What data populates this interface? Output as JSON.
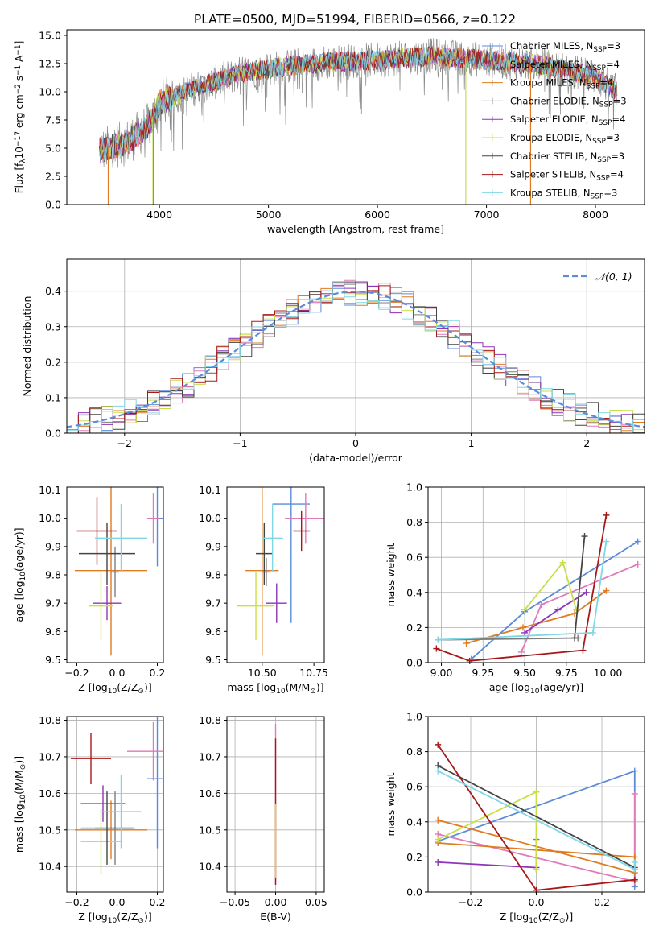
{
  "title": "PLATE=0500, MJD=51994, FIBERID=0566, z=0.122",
  "colors": {
    "chabrier_miles": "#5b8bd9",
    "salpeter_miles": "#e07ab8",
    "kroupa_miles": "#e07b22",
    "chabrier_elodie": "#7d7d7d",
    "salpeter_elodie": "#8e35b8",
    "kroupa_elodie": "#c7e04a",
    "chabrier_stelib": "#444444",
    "salpeter_stelib": "#a81818",
    "kroupa_stelib": "#7fd6e6",
    "normal": "#5b8bd9",
    "grid": "#b0b0b0"
  },
  "chart_data": [
    {
      "id": "spectrum",
      "type": "line",
      "xlabel": "wavelength [Angstrom, rest frame]",
      "ylabel": "Flux [f",
      "ylabel_sub": "λ",
      "ylabel_tail": "10",
      "ylabel_exp": "−17",
      "ylabel_unit": " erg cm",
      "ylabel_unit_exp": "−2",
      "ylabel_s": " s",
      "ylabel_s_exp": "−1",
      "ylabel_A": " A",
      "ylabel_A_exp": "−1",
      "ylabel_end": "]",
      "xlim": [
        3150,
        8450
      ],
      "ylim": [
        0,
        15.5
      ],
      "xticks": [
        "4000",
        "5000",
        "6000",
        "7000",
        "8000"
      ],
      "xtick_values": [
        4000,
        5000,
        6000,
        7000,
        8000
      ],
      "yticks": [
        "0.0",
        "2.5",
        "5.0",
        "7.5",
        "10.0",
        "12.5",
        "15.0"
      ],
      "ytick_values": [
        0,
        2.5,
        5,
        7.5,
        10,
        12.5,
        15
      ],
      "continuum_x": [
        3450,
        3700,
        3900,
        4000,
        4300,
        4800,
        5500,
        6000,
        6500,
        7000,
        7500,
        8000,
        8200
      ],
      "continuum_y": [
        4.8,
        5.5,
        7.0,
        9.0,
        10.2,
        11.8,
        12.6,
        12.8,
        13.2,
        12.8,
        12.4,
        11.3,
        10.0
      ],
      "legend": [
        {
          "label": "Chabrier MILES, N",
          "sub": "SSP",
          "tail": "=3",
          "color": "#5b8bd9"
        },
        {
          "label": "Salpeter MILES, N",
          "sub": "SSP",
          "tail": "=4",
          "color": "#e07ab8"
        },
        {
          "label": "Kroupa MILES, N",
          "sub": "SSP",
          "tail": "=4",
          "color": "#e07b22"
        },
        {
          "label": "Chabrier ELODIE, N",
          "sub": "SSP",
          "tail": "=3",
          "color": "#7d7d7d"
        },
        {
          "label": "Salpeter ELODIE, N",
          "sub": "SSP",
          "tail": "=4",
          "color": "#8e35b8"
        },
        {
          "label": "Kroupa ELODIE, N",
          "sub": "SSP",
          "tail": "=3",
          "color": "#c7e04a"
        },
        {
          "label": "Chabrier STELIB, N",
          "sub": "SSP",
          "tail": "=3",
          "color": "#444444"
        },
        {
          "label": "Salpeter STELIB, N",
          "sub": "SSP",
          "tail": "=4",
          "color": "#a81818"
        },
        {
          "label": "Kroupa STELIB, N",
          "sub": "SSP",
          "tail": "=3",
          "color": "#7fd6e6"
        }
      ]
    },
    {
      "id": "residuals",
      "type": "line",
      "xlabel": "(data-model)/error",
      "ylabel": "Normed distribution",
      "xlim": [
        -2.5,
        2.5
      ],
      "ylim": [
        0,
        0.49
      ],
      "xticks": [
        "−2",
        "−1",
        "0",
        "1",
        "2"
      ],
      "xtick_values": [
        -2,
        -1,
        0,
        1,
        2
      ],
      "yticks": [
        "0.0",
        "0.1",
        "0.2",
        "0.3",
        "0.4"
      ],
      "ytick_values": [
        0,
        0.1,
        0.2,
        0.3,
        0.4
      ],
      "legend_label": "𝒩(0, 1)",
      "bin_width": 0.1
    },
    {
      "id": "age_vs_Z",
      "type": "scatter",
      "xlabel": "Z [log",
      "xlabel_sub": "10",
      "xlabel_tail": "(Z/Z",
      "xlabel_sub2": "⊙",
      "xlabel_end": ")]",
      "ylabel": "age  [log",
      "ylabel_sub": "10",
      "ylabel_tail": "(age/yr)]",
      "xlim": [
        -0.25,
        0.23
      ],
      "ylim": [
        9.49,
        10.11
      ],
      "xticks": [
        "−0.2",
        "0.0",
        "0.2"
      ],
      "xtick_values": [
        -0.2,
        0,
        0.2
      ],
      "yticks": [
        "9.5",
        "9.6",
        "9.7",
        "9.8",
        "9.9",
        "10.0",
        "10.1"
      ],
      "ytick_values": [
        9.5,
        9.6,
        9.7,
        9.8,
        9.9,
        10.0,
        10.1
      ],
      "points": [
        {
          "x": 0.2,
          "y": 10.0,
          "xerr": 0.03,
          "yerr": 0.17,
          "color": "#5b8bd9"
        },
        {
          "x": 0.18,
          "y": 10.0,
          "xerr": 0.03,
          "yerr": 0.09,
          "color": "#e07ab8"
        },
        {
          "x": -0.03,
          "y": 9.815,
          "xerr": 0.18,
          "yerr": 0.3,
          "color": "#e07b22"
        },
        {
          "x": -0.01,
          "y": 9.81,
          "xerr": 0.02,
          "yerr": 0.09,
          "color": "#7d7d7d"
        },
        {
          "x": -0.05,
          "y": 9.7,
          "xerr": 0.07,
          "yerr": 0.06,
          "color": "#8e35b8"
        },
        {
          "x": -0.08,
          "y": 9.69,
          "xerr": 0.06,
          "yerr": 0.12,
          "color": "#c7e04a"
        },
        {
          "x": -0.05,
          "y": 9.875,
          "xerr": 0.14,
          "yerr": 0.11,
          "color": "#444444"
        },
        {
          "x": -0.1,
          "y": 9.955,
          "xerr": 0.1,
          "yerr": 0.12,
          "color": "#a81818"
        },
        {
          "x": 0.02,
          "y": 9.93,
          "xerr": 0.13,
          "yerr": 0.12,
          "color": "#7fd6e6"
        }
      ]
    },
    {
      "id": "age_vs_mass",
      "type": "scatter",
      "xlabel": "mass [log",
      "xlabel_sub": "10",
      "xlabel_tail": "(M/M",
      "xlabel_sub2": "⊙",
      "xlabel_end": ")]",
      "xlim": [
        10.33,
        10.8
      ],
      "ylim": [
        9.49,
        10.11
      ],
      "xticks": [
        "10.50",
        "10.75"
      ],
      "xtick_values": [
        10.5,
        10.75
      ],
      "yticks": [
        "9.5",
        "9.6",
        "9.7",
        "9.8",
        "9.9",
        "10.0",
        "10.1"
      ],
      "ytick_values": [
        9.5,
        9.6,
        9.7,
        9.8,
        9.9,
        10.0,
        10.1
      ],
      "points": [
        {
          "x": 10.64,
          "y": 10.05,
          "xerr": 0.09,
          "yerr": 0.42,
          "color": "#5b8bd9"
        },
        {
          "x": 10.71,
          "y": 10.0,
          "xerr": 0.1,
          "yerr": 0.09,
          "color": "#e07ab8"
        },
        {
          "x": 10.5,
          "y": 9.815,
          "xerr": 0.08,
          "yerr": 0.3,
          "color": "#e07b22"
        },
        {
          "x": 10.52,
          "y": 9.81,
          "xerr": 0.02,
          "yerr": 0.05,
          "color": "#7d7d7d"
        },
        {
          "x": 10.57,
          "y": 9.7,
          "xerr": 0.05,
          "yerr": 0.07,
          "color": "#8e35b8"
        },
        {
          "x": 10.47,
          "y": 9.69,
          "xerr": 0.09,
          "yerr": 0.12,
          "color": "#c7e04a"
        },
        {
          "x": 10.51,
          "y": 9.875,
          "xerr": 0.04,
          "yerr": 0.11,
          "color": "#444444"
        },
        {
          "x": 10.69,
          "y": 9.955,
          "xerr": 0.04,
          "yerr": 0.07,
          "color": "#a81818"
        },
        {
          "x": 10.55,
          "y": 9.93,
          "xerr": 0.05,
          "yerr": 0.12,
          "color": "#7fd6e6"
        }
      ]
    },
    {
      "id": "weight_vs_age",
      "type": "line",
      "xlabel": "age  [log",
      "xlabel_sub": "10",
      "xlabel_tail": "(age/yr)]",
      "ylabel": "mass weight",
      "xlim": [
        8.92,
        10.22
      ],
      "ylim": [
        0,
        1.0
      ],
      "xticks": [
        "9.00",
        "9.25",
        "9.50",
        "9.75",
        "10.00"
      ],
      "xtick_values": [
        9.0,
        9.25,
        9.5,
        9.75,
        10.0
      ],
      "yticks": [
        "0.0",
        "0.2",
        "0.4",
        "0.6",
        "0.8",
        "1.0"
      ],
      "ytick_values": [
        0,
        0.2,
        0.4,
        0.6,
        0.8,
        1.0
      ],
      "series": [
        {
          "color": "#5b8bd9",
          "x": [
            9.18,
            9.5,
            10.18
          ],
          "y": [
            0.02,
            0.29,
            0.69
          ]
        },
        {
          "color": "#e07ab8",
          "x": [
            9.48,
            9.6,
            10.18
          ],
          "y": [
            0.06,
            0.33,
            0.56
          ]
        },
        {
          "color": "#e07b22",
          "x": [
            9.15,
            9.49,
            9.8,
            9.99
          ],
          "y": [
            0.11,
            0.2,
            0.28,
            0.41
          ]
        },
        {
          "color": "#7d7d7d",
          "x": [
            8.98,
            9.82
          ],
          "y": [
            0.13,
            0.14
          ]
        },
        {
          "color": "#8e35b8",
          "x": [
            9.5,
            9.7,
            9.87
          ],
          "y": [
            0.17,
            0.3,
            0.4
          ]
        },
        {
          "color": "#c7e04a",
          "x": [
            9.5,
            9.73,
            9.81
          ],
          "y": [
            0.3,
            0.57,
            0.3
          ]
        },
        {
          "color": "#444444",
          "x": [
            9.8,
            9.86
          ],
          "y": [
            0.14,
            0.72
          ]
        },
        {
          "color": "#a81818",
          "x": [
            8.97,
            9.17,
            9.85,
            9.99
          ],
          "y": [
            0.08,
            0.01,
            0.07,
            0.84
          ]
        },
        {
          "color": "#7fd6e6",
          "x": [
            8.98,
            9.91,
            9.99
          ],
          "y": [
            0.13,
            0.17,
            0.69
          ]
        }
      ]
    },
    {
      "id": "mass_vs_Z",
      "type": "scatter",
      "xlabel": "Z [log",
      "xlabel_sub": "10",
      "xlabel_tail": "(Z/Z",
      "xlabel_sub2": "⊙",
      "xlabel_end": ")]",
      "ylabel": "mass [log",
      "ylabel_sub": "10",
      "ylabel_tail": "(M/M",
      "ylabel_sub2": "⊙",
      "ylabel_end": ")]",
      "xlim": [
        -0.25,
        0.23
      ],
      "ylim": [
        10.33,
        10.81
      ],
      "xticks": [
        "−0.2",
        "0.0",
        "0.2"
      ],
      "xtick_values": [
        -0.2,
        0,
        0.2
      ],
      "yticks": [
        "10.4",
        "10.5",
        "10.6",
        "10.7",
        "10.8"
      ],
      "ytick_values": [
        10.4,
        10.5,
        10.6,
        10.7,
        10.8
      ],
      "points": [
        {
          "x": 0.2,
          "y": 10.64,
          "xerr": 0.05,
          "yerr": 0.19,
          "color": "#5b8bd9"
        },
        {
          "x": 0.18,
          "y": 10.715,
          "xerr": 0.13,
          "yerr": 0.08,
          "color": "#e07ab8"
        },
        {
          "x": -0.03,
          "y": 10.5,
          "xerr": 0.18,
          "yerr": 0.08,
          "color": "#e07b22"
        },
        {
          "x": -0.01,
          "y": 10.505,
          "xerr": 0.1,
          "yerr": 0.1,
          "color": "#7d7d7d"
        },
        {
          "x": -0.07,
          "y": 10.572,
          "xerr": 0.11,
          "yerr": 0.05,
          "color": "#8e35b8"
        },
        {
          "x": -0.08,
          "y": 10.468,
          "xerr": 0.1,
          "yerr": 0.09,
          "color": "#c7e04a"
        },
        {
          "x": -0.05,
          "y": 10.505,
          "xerr": 0.13,
          "yerr": 0.1,
          "color": "#444444"
        },
        {
          "x": -0.13,
          "y": 10.695,
          "xerr": 0.1,
          "yerr": 0.07,
          "color": "#a81818"
        },
        {
          "x": 0.02,
          "y": 10.55,
          "xerr": 0.1,
          "yerr": 0.1,
          "color": "#7fd6e6"
        }
      ]
    },
    {
      "id": "mass_vs_ebv",
      "type": "scatter",
      "xlabel": "E(B-V)",
      "xlim": [
        -0.06,
        0.06
      ],
      "ylim": [
        10.33,
        10.81
      ],
      "xticks": [
        "−0.05",
        "0.00",
        "0.05"
      ],
      "xtick_values": [
        -0.05,
        0,
        0.05
      ],
      "yticks": [
        "10.4",
        "10.5",
        "10.6",
        "10.7",
        "10.8"
      ],
      "ytick_values": [
        10.4,
        10.5,
        10.6,
        10.7,
        10.8
      ],
      "points": [
        {
          "x": 0,
          "y": 10.57,
          "xerr": 0,
          "yerr": 0.22,
          "color": "#e07ab8"
        },
        {
          "x": 0,
          "y": 10.55,
          "xerr": 0,
          "yerr": 0.2,
          "color": "#a81818"
        },
        {
          "x": 0,
          "y": 10.47,
          "xerr": 0,
          "yerr": 0.1,
          "color": "#c7e04a"
        }
      ]
    },
    {
      "id": "weight_vs_Z",
      "type": "line",
      "xlabel": "Z [log",
      "xlabel_sub": "10",
      "xlabel_tail": "(Z/Z",
      "xlabel_sub2": "⊙",
      "xlabel_end": ")]",
      "ylabel": "mass weight",
      "xlim": [
        -0.33,
        0.33
      ],
      "ylim": [
        0,
        1.0
      ],
      "xticks": [
        "−0.2",
        "0.0",
        "0.2"
      ],
      "xtick_values": [
        -0.2,
        0,
        0.2
      ],
      "yticks": [
        "0.0",
        "0.2",
        "0.4",
        "0.6",
        "0.8",
        "1.0"
      ],
      "ytick_values": [
        0,
        0.2,
        0.4,
        0.6,
        0.8,
        1.0
      ],
      "series": [
        {
          "color": "#5b8bd9",
          "x": [
            -0.3,
            0.3,
            0.3
          ],
          "y": [
            0.29,
            0.69,
            0.03
          ]
        },
        {
          "color": "#e07ab8",
          "x": [
            -0.3,
            0.3,
            0.3
          ],
          "y": [
            0.33,
            0.06,
            0.56
          ]
        },
        {
          "color": "#e07b22",
          "x": [
            -0.3,
            0.3,
            0.3,
            -0.3
          ],
          "y": [
            0.41,
            0.11,
            0.2,
            0.28
          ]
        },
        {
          "color": "#7d7d7d",
          "x": [
            0,
            0
          ],
          "y": [
            0.3,
            0.13
          ]
        },
        {
          "color": "#8e35b8",
          "x": [
            -0.3,
            0
          ],
          "y": [
            0.17,
            0.14
          ]
        },
        {
          "color": "#c7e04a",
          "x": [
            -0.3,
            0,
            0
          ],
          "y": [
            0.3,
            0.57,
            0.13
          ]
        },
        {
          "color": "#444444",
          "x": [
            -0.3,
            0.3
          ],
          "y": [
            0.72,
            0.14
          ]
        },
        {
          "color": "#a81818",
          "x": [
            -0.3,
            0,
            0.3
          ],
          "y": [
            0.84,
            0.01,
            0.07
          ]
        },
        {
          "color": "#7fd6e6",
          "x": [
            -0.3,
            0.3,
            0.3
          ],
          "y": [
            0.69,
            0.13,
            0.17
          ]
        }
      ]
    }
  ]
}
